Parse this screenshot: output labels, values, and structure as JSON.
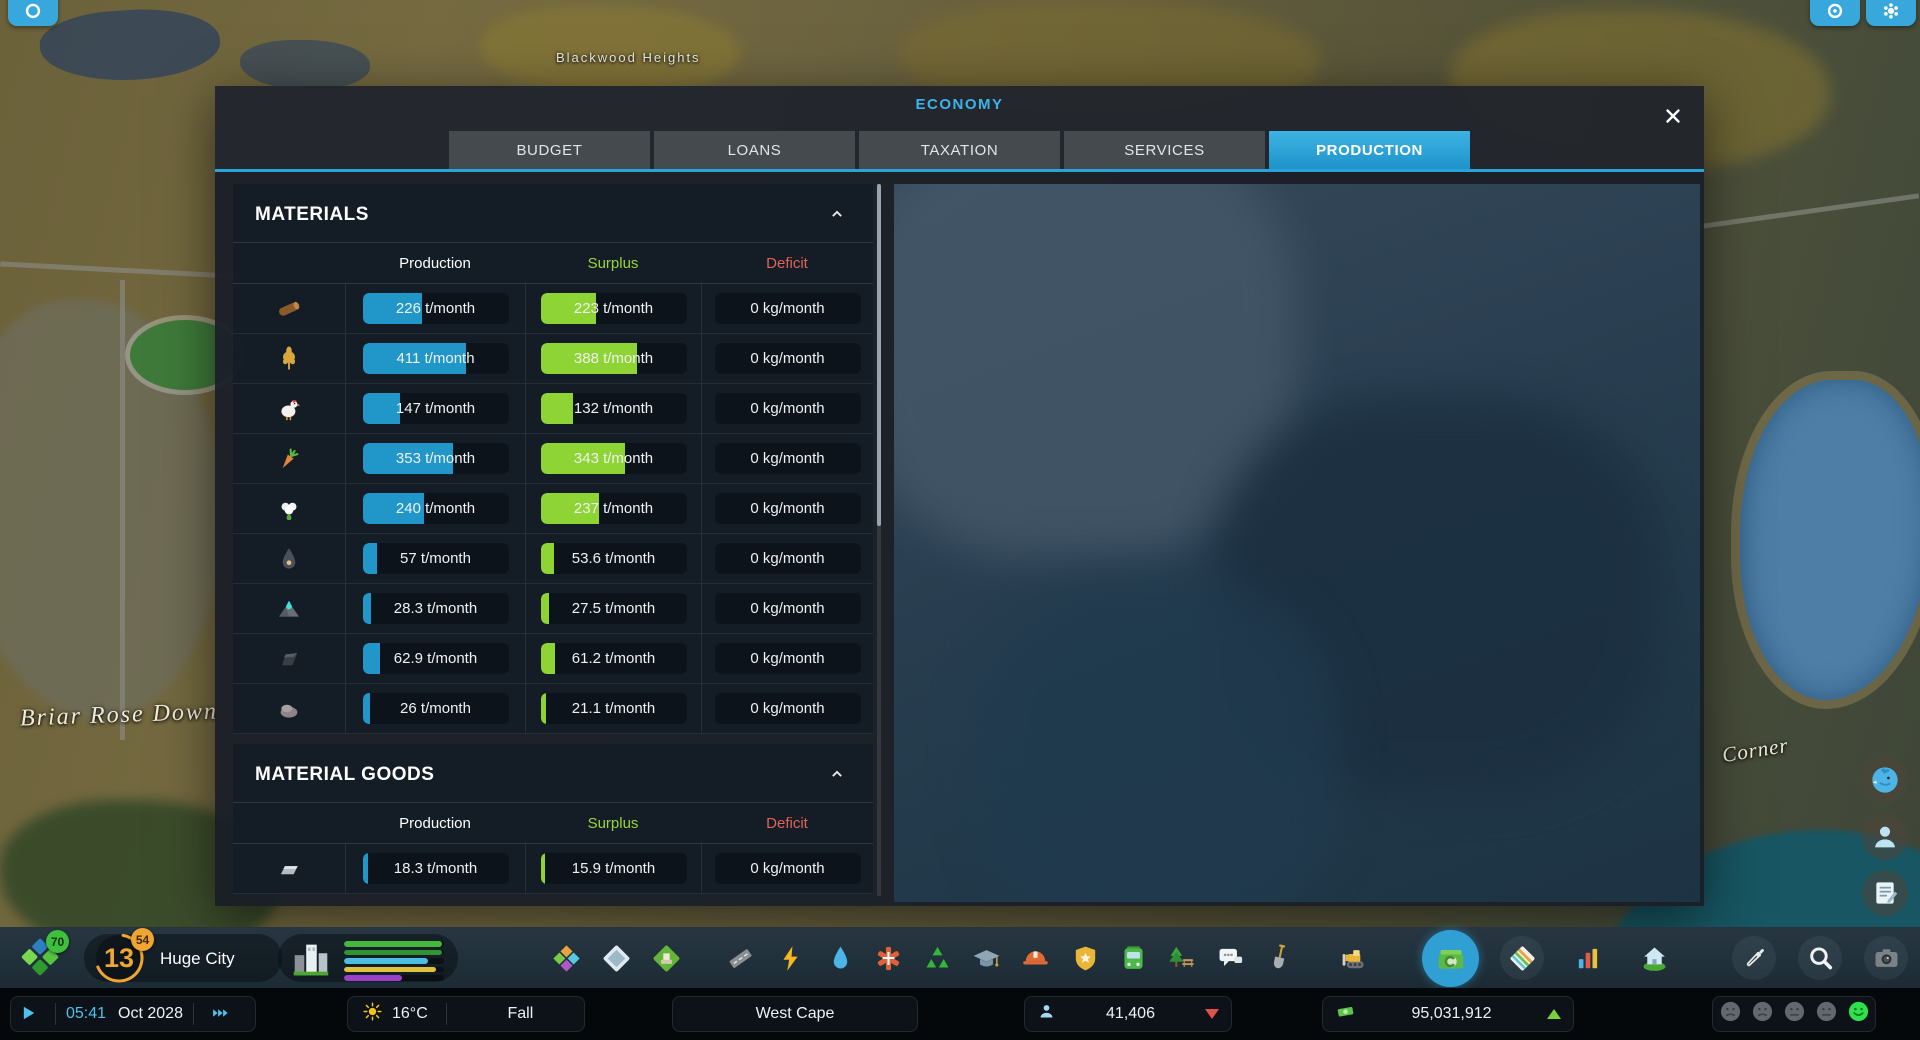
{
  "economy_panel": {
    "title": "ECONOMY",
    "tabs": [
      {
        "label": "BUDGET",
        "active": false
      },
      {
        "label": "LOANS",
        "active": false
      },
      {
        "label": "TAXATION",
        "active": false
      },
      {
        "label": "SERVICES",
        "active": false
      },
      {
        "label": "PRODUCTION",
        "active": true
      }
    ],
    "sections": [
      {
        "title": "MATERIALS",
        "collapsed": false,
        "columns": {
          "production": "Production",
          "surplus": "Surplus",
          "deficit": "Deficit"
        },
        "rows": [
          {
            "icon": "wood-icon",
            "production": "226 t/month",
            "production_pct": 41,
            "surplus": "223 t/month",
            "surplus_pct": 38,
            "deficit": "0 kg/month"
          },
          {
            "icon": "grain-icon",
            "production": "411 t/month",
            "production_pct": 71,
            "surplus": "388 t/month",
            "surplus_pct": 66,
            "deficit": "0 kg/month"
          },
          {
            "icon": "livestock-icon",
            "production": "147 t/month",
            "production_pct": 26,
            "surplus": "132 t/month",
            "surplus_pct": 22,
            "deficit": "0 kg/month"
          },
          {
            "icon": "vegetables-icon",
            "production": "353 t/month",
            "production_pct": 62,
            "surplus": "343 t/month",
            "surplus_pct": 58,
            "deficit": "0 kg/month"
          },
          {
            "icon": "cotton-icon",
            "production": "240 t/month",
            "production_pct": 42,
            "surplus": "237 t/month",
            "surplus_pct": 40,
            "deficit": "0 kg/month"
          },
          {
            "icon": "oil-icon",
            "production": "57 t/month",
            "production_pct": 10,
            "surplus": "53.6 t/month",
            "surplus_pct": 9,
            "deficit": "0 kg/month"
          },
          {
            "icon": "ore-icon",
            "production": "28.3 t/month",
            "production_pct": 6,
            "surplus": "27.5 t/month",
            "surplus_pct": 6,
            "deficit": "0 kg/month"
          },
          {
            "icon": "coal-icon",
            "production": "62.9 t/month",
            "production_pct": 12,
            "surplus": "61.2 t/month",
            "surplus_pct": 10,
            "deficit": "0 kg/month"
          },
          {
            "icon": "stone-icon",
            "production": "26 t/month",
            "production_pct": 5,
            "surplus": "21.1 t/month",
            "surplus_pct": 4,
            "deficit": "0 kg/month"
          }
        ]
      },
      {
        "title": "MATERIAL GOODS",
        "collapsed": false,
        "columns": {
          "production": "Production",
          "surplus": "Surplus",
          "deficit": "Deficit"
        },
        "rows": [
          {
            "icon": "metals-icon",
            "production": "18.3 t/month",
            "production_pct": 4,
            "surplus": "15.9 t/month",
            "surplus_pct": 3,
            "deficit": "0 kg/month"
          }
        ]
      }
    ]
  },
  "map_labels": {
    "top": "Blackwood Heights",
    "bottom_left": "Briar Rose Down",
    "right": "Corner"
  },
  "hud": {
    "tiles_badge": "70",
    "milestone_level": "13",
    "milestone_badge": "54",
    "city_size_label": "Huge City",
    "progress_bars": [
      {
        "color": "#46b83c",
        "pct": 98
      },
      {
        "color": "#2f9431",
        "pct": 98
      },
      {
        "color": "#4dbde0",
        "pct": 84
      },
      {
        "color": "#e0c23c",
        "pct": 92
      },
      {
        "color": "#9b40c8",
        "pct": 58
      }
    ],
    "toolbar_icons": [
      "zones-icon",
      "areas-icon",
      "service-buildings-icon",
      "roads-icon",
      "electricity-icon",
      "water-icon",
      "healthcare-icon",
      "garbage-icon",
      "education-icon",
      "fire-rescue-icon",
      "police-icon",
      "transportation-icon",
      "parks-icon",
      "communications-icon",
      "landscaping-icon",
      "bulldozer-icon",
      "economy-icon",
      "map-overlays-icon",
      "statistics-icon",
      "info-views-icon",
      "picker-icon",
      "search-icon",
      "photo-mode-icon"
    ],
    "active_toolbar_icon": "economy-icon",
    "side_buttons": [
      "chirper-icon",
      "citizen-icon",
      "journal-icon"
    ],
    "top_buttons": [
      "logo-icon",
      "radial-icon",
      "settings-gear-icon"
    ]
  },
  "statusbar": {
    "time": "05:41",
    "date": "Oct 2028",
    "temperature": "16°C",
    "season": "Fall",
    "map_name": "West Cape",
    "population": "41,406",
    "population_trend": "down",
    "money": "95,031,912",
    "money_trend": "up",
    "happiness_active_index": 4
  }
}
